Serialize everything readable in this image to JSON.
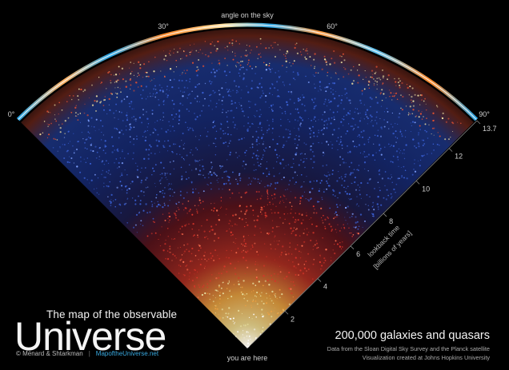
{
  "angle_axis": {
    "label": "angle on the sky",
    "ticks": [
      {
        "value": 0,
        "label": "0°"
      },
      {
        "value": 30,
        "label": "30°"
      },
      {
        "value": 60,
        "label": "60°"
      },
      {
        "value": 90,
        "label": "90°"
      }
    ]
  },
  "time_axis": {
    "label_line1": "lookback time",
    "label_line2": "[billions of years]",
    "ticks": [
      {
        "value": 2,
        "label": "2"
      },
      {
        "value": 4,
        "label": "4"
      },
      {
        "value": 6,
        "label": "6"
      },
      {
        "value": 8,
        "label": "8"
      },
      {
        "value": 10,
        "label": "10"
      },
      {
        "value": 12,
        "label": "12"
      },
      {
        "value": 13.7,
        "label": "13.7"
      }
    ],
    "max": 13.7
  },
  "origin_label": "you are here",
  "title_line1": "The map of the observable",
  "title_line2": "Universe",
  "credit_authors": "© Ménard & Shtarkman",
  "credit_separator": "|",
  "credit_site": "MapoftheUniverse.net",
  "caption_main": "200,000 galaxies and quasars",
  "caption_line1": "Data from the Sloan Digital Sky Survey and the Planck satellite",
  "caption_line2": "Visualization created at Johns Hopkins University",
  "colors": {
    "background": "#000000",
    "near_galaxies": "#e8e0a0",
    "red_galaxies": "#d8352a",
    "blue_quasars": "#3b62d8",
    "cmb_hot": "#ff8a2a",
    "cmb_cold": "#2aa6e8",
    "link": "#39a9e0"
  }
}
